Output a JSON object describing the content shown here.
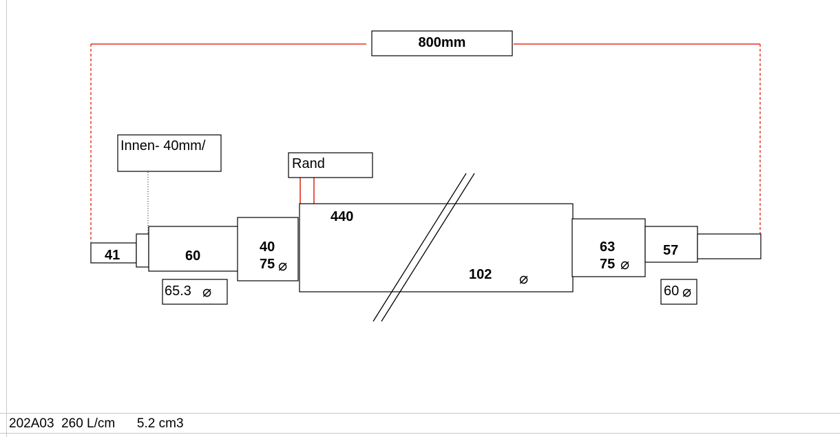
{
  "drawing": {
    "total_length": "800mm",
    "inner_label": "Innen-  40mm/",
    "rand_label": "Rand",
    "seg_41": "41",
    "seg_60": "60",
    "seg_40": "40",
    "seg_40_dia": "75",
    "body_length": "440",
    "body_dia": "102",
    "seg_63": "63",
    "seg_63_dia": "75",
    "seg_57": "57",
    "inlet_dia": "65.3",
    "outlet_dia": "60",
    "diameter_symbol": "⌀"
  },
  "footer": {
    "part_no": "202A03",
    "flow": "260 L/cm",
    "volume": "5.2 cm3"
  },
  "colors": {
    "dimension_red": "#e0301e",
    "outline": "#000000",
    "grid": "#c8c8c8"
  }
}
